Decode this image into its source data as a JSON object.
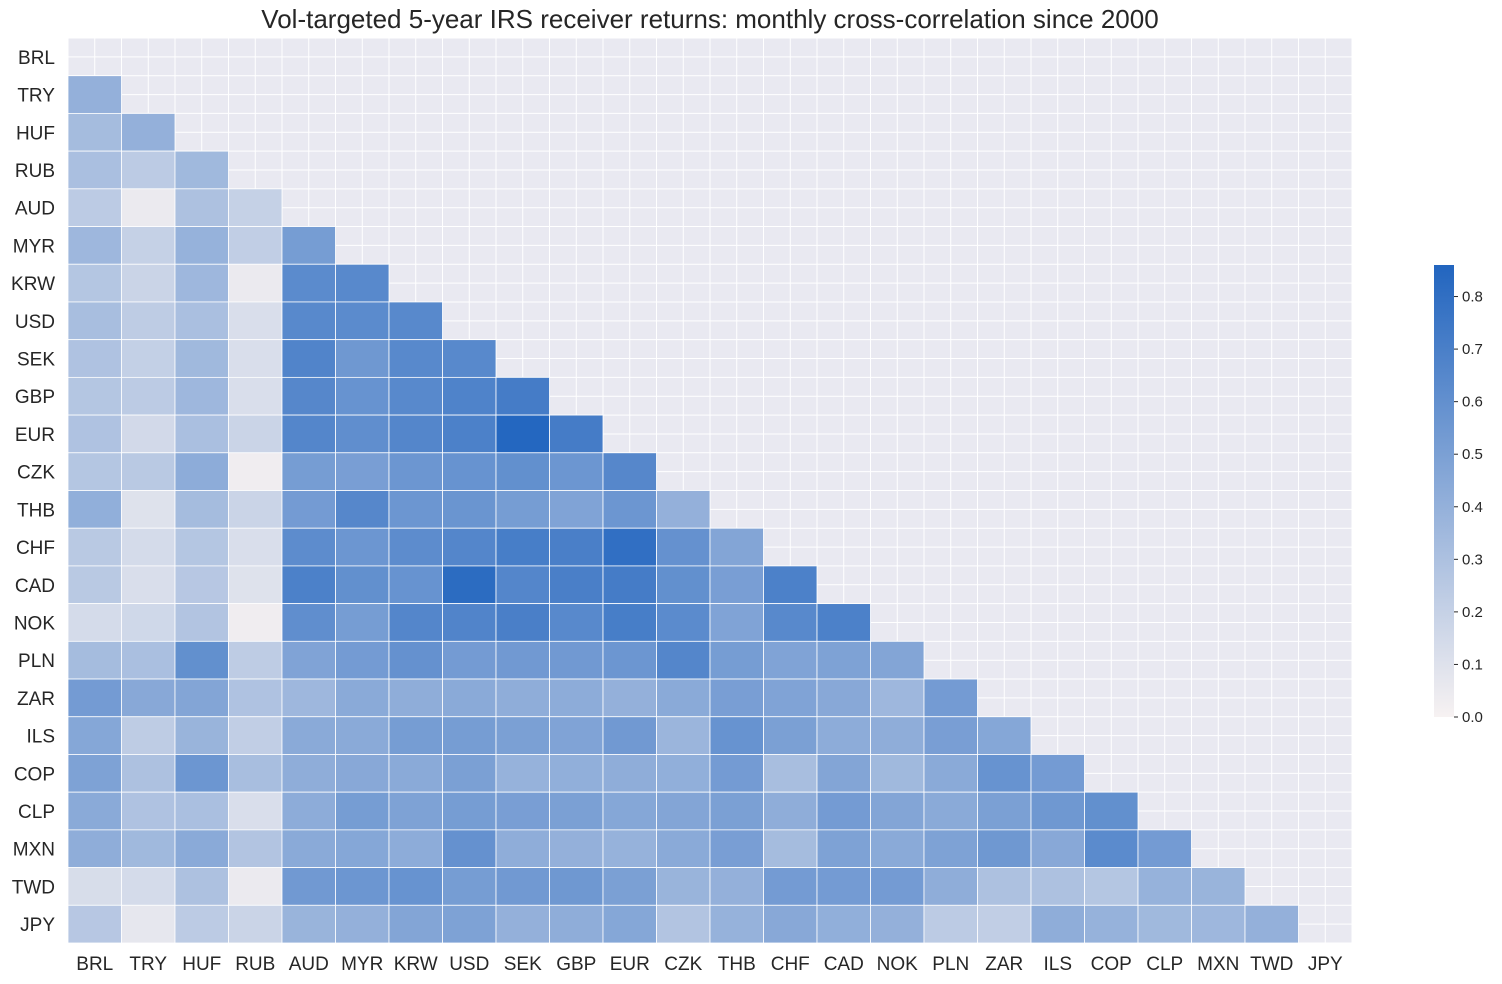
{
  "chart_data": {
    "type": "heatmap",
    "title": "Vol-targeted 5-year IRS receiver returns: monthly cross-correlation since 2000",
    "xlabel": "",
    "ylabel": "",
    "labels": [
      "BRL",
      "TRY",
      "HUF",
      "RUB",
      "AUD",
      "MYR",
      "KRW",
      "USD",
      "SEK",
      "GBP",
      "EUR",
      "CZK",
      "THB",
      "CHF",
      "CAD",
      "NOK",
      "PLN",
      "ZAR",
      "ILS",
      "COP",
      "CLP",
      "MXN",
      "TWD",
      "JPY"
    ],
    "mask": "upper-triangle-including-diagonal",
    "values": [
      [],
      [
        0.4
      ],
      [
        0.33,
        0.4
      ],
      [
        0.31,
        0.24,
        0.35
      ],
      [
        0.24,
        0.05,
        0.3,
        0.2
      ],
      [
        0.36,
        0.2,
        0.39,
        0.22,
        0.52
      ],
      [
        0.27,
        0.18,
        0.36,
        0.05,
        0.63,
        0.64
      ],
      [
        0.32,
        0.23,
        0.31,
        0.12,
        0.64,
        0.63,
        0.64
      ],
      [
        0.29,
        0.21,
        0.35,
        0.12,
        0.67,
        0.55,
        0.64,
        0.64
      ],
      [
        0.27,
        0.24,
        0.36,
        0.12,
        0.65,
        0.58,
        0.64,
        0.68,
        0.72
      ],
      [
        0.29,
        0.15,
        0.31,
        0.18,
        0.66,
        0.61,
        0.66,
        0.69,
        0.85,
        0.72
      ],
      [
        0.27,
        0.25,
        0.43,
        0.03,
        0.52,
        0.51,
        0.56,
        0.58,
        0.6,
        0.56,
        0.65
      ],
      [
        0.41,
        0.1,
        0.33,
        0.18,
        0.53,
        0.65,
        0.56,
        0.57,
        0.52,
        0.48,
        0.56,
        0.4
      ],
      [
        0.25,
        0.14,
        0.27,
        0.12,
        0.62,
        0.56,
        0.62,
        0.66,
        0.71,
        0.7,
        0.8,
        0.59,
        0.47
      ],
      [
        0.25,
        0.12,
        0.26,
        0.1,
        0.69,
        0.6,
        0.58,
        0.82,
        0.66,
        0.7,
        0.72,
        0.6,
        0.51,
        0.69
      ],
      [
        0.14,
        0.16,
        0.28,
        0.03,
        0.61,
        0.52,
        0.66,
        0.67,
        0.7,
        0.64,
        0.71,
        0.63,
        0.48,
        0.64,
        0.69
      ],
      [
        0.33,
        0.31,
        0.6,
        0.23,
        0.48,
        0.53,
        0.59,
        0.53,
        0.54,
        0.54,
        0.56,
        0.66,
        0.52,
        0.48,
        0.49,
        0.47
      ],
      [
        0.53,
        0.45,
        0.47,
        0.29,
        0.36,
        0.44,
        0.42,
        0.44,
        0.42,
        0.43,
        0.4,
        0.44,
        0.51,
        0.48,
        0.45,
        0.36,
        0.53
      ],
      [
        0.46,
        0.23,
        0.38,
        0.22,
        0.44,
        0.44,
        0.52,
        0.52,
        0.5,
        0.48,
        0.54,
        0.37,
        0.58,
        0.5,
        0.43,
        0.42,
        0.51,
        0.46
      ],
      [
        0.49,
        0.3,
        0.56,
        0.32,
        0.42,
        0.45,
        0.44,
        0.5,
        0.39,
        0.41,
        0.42,
        0.41,
        0.53,
        0.32,
        0.47,
        0.35,
        0.44,
        0.58,
        0.53
      ],
      [
        0.44,
        0.29,
        0.31,
        0.12,
        0.43,
        0.52,
        0.49,
        0.52,
        0.51,
        0.5,
        0.46,
        0.47,
        0.5,
        0.42,
        0.53,
        0.47,
        0.44,
        0.5,
        0.55,
        0.6
      ],
      [
        0.42,
        0.35,
        0.44,
        0.28,
        0.44,
        0.46,
        0.43,
        0.59,
        0.42,
        0.4,
        0.39,
        0.44,
        0.51,
        0.33,
        0.49,
        0.44,
        0.49,
        0.55,
        0.45,
        0.63,
        0.53
      ],
      [
        0.13,
        0.14,
        0.3,
        0.05,
        0.54,
        0.56,
        0.58,
        0.52,
        0.54,
        0.55,
        0.5,
        0.38,
        0.4,
        0.53,
        0.53,
        0.53,
        0.42,
        0.3,
        0.3,
        0.27,
        0.39,
        0.38
      ],
      [
        0.26,
        0.07,
        0.24,
        0.18,
        0.38,
        0.4,
        0.47,
        0.49,
        0.4,
        0.42,
        0.46,
        0.28,
        0.39,
        0.45,
        0.41,
        0.4,
        0.24,
        0.22,
        0.42,
        0.39,
        0.35,
        0.36,
        0.4
      ]
    ],
    "colorbar": {
      "min": 0.0,
      "max": 0.86,
      "ticks": [
        "0.0",
        "0.1",
        "0.2",
        "0.3",
        "0.4",
        "0.5",
        "0.6",
        "0.7",
        "0.8"
      ]
    },
    "colormap": {
      "low": "#f7f2f2",
      "high": "#2265bf"
    },
    "background": "#e9e9f1",
    "grid": true
  }
}
